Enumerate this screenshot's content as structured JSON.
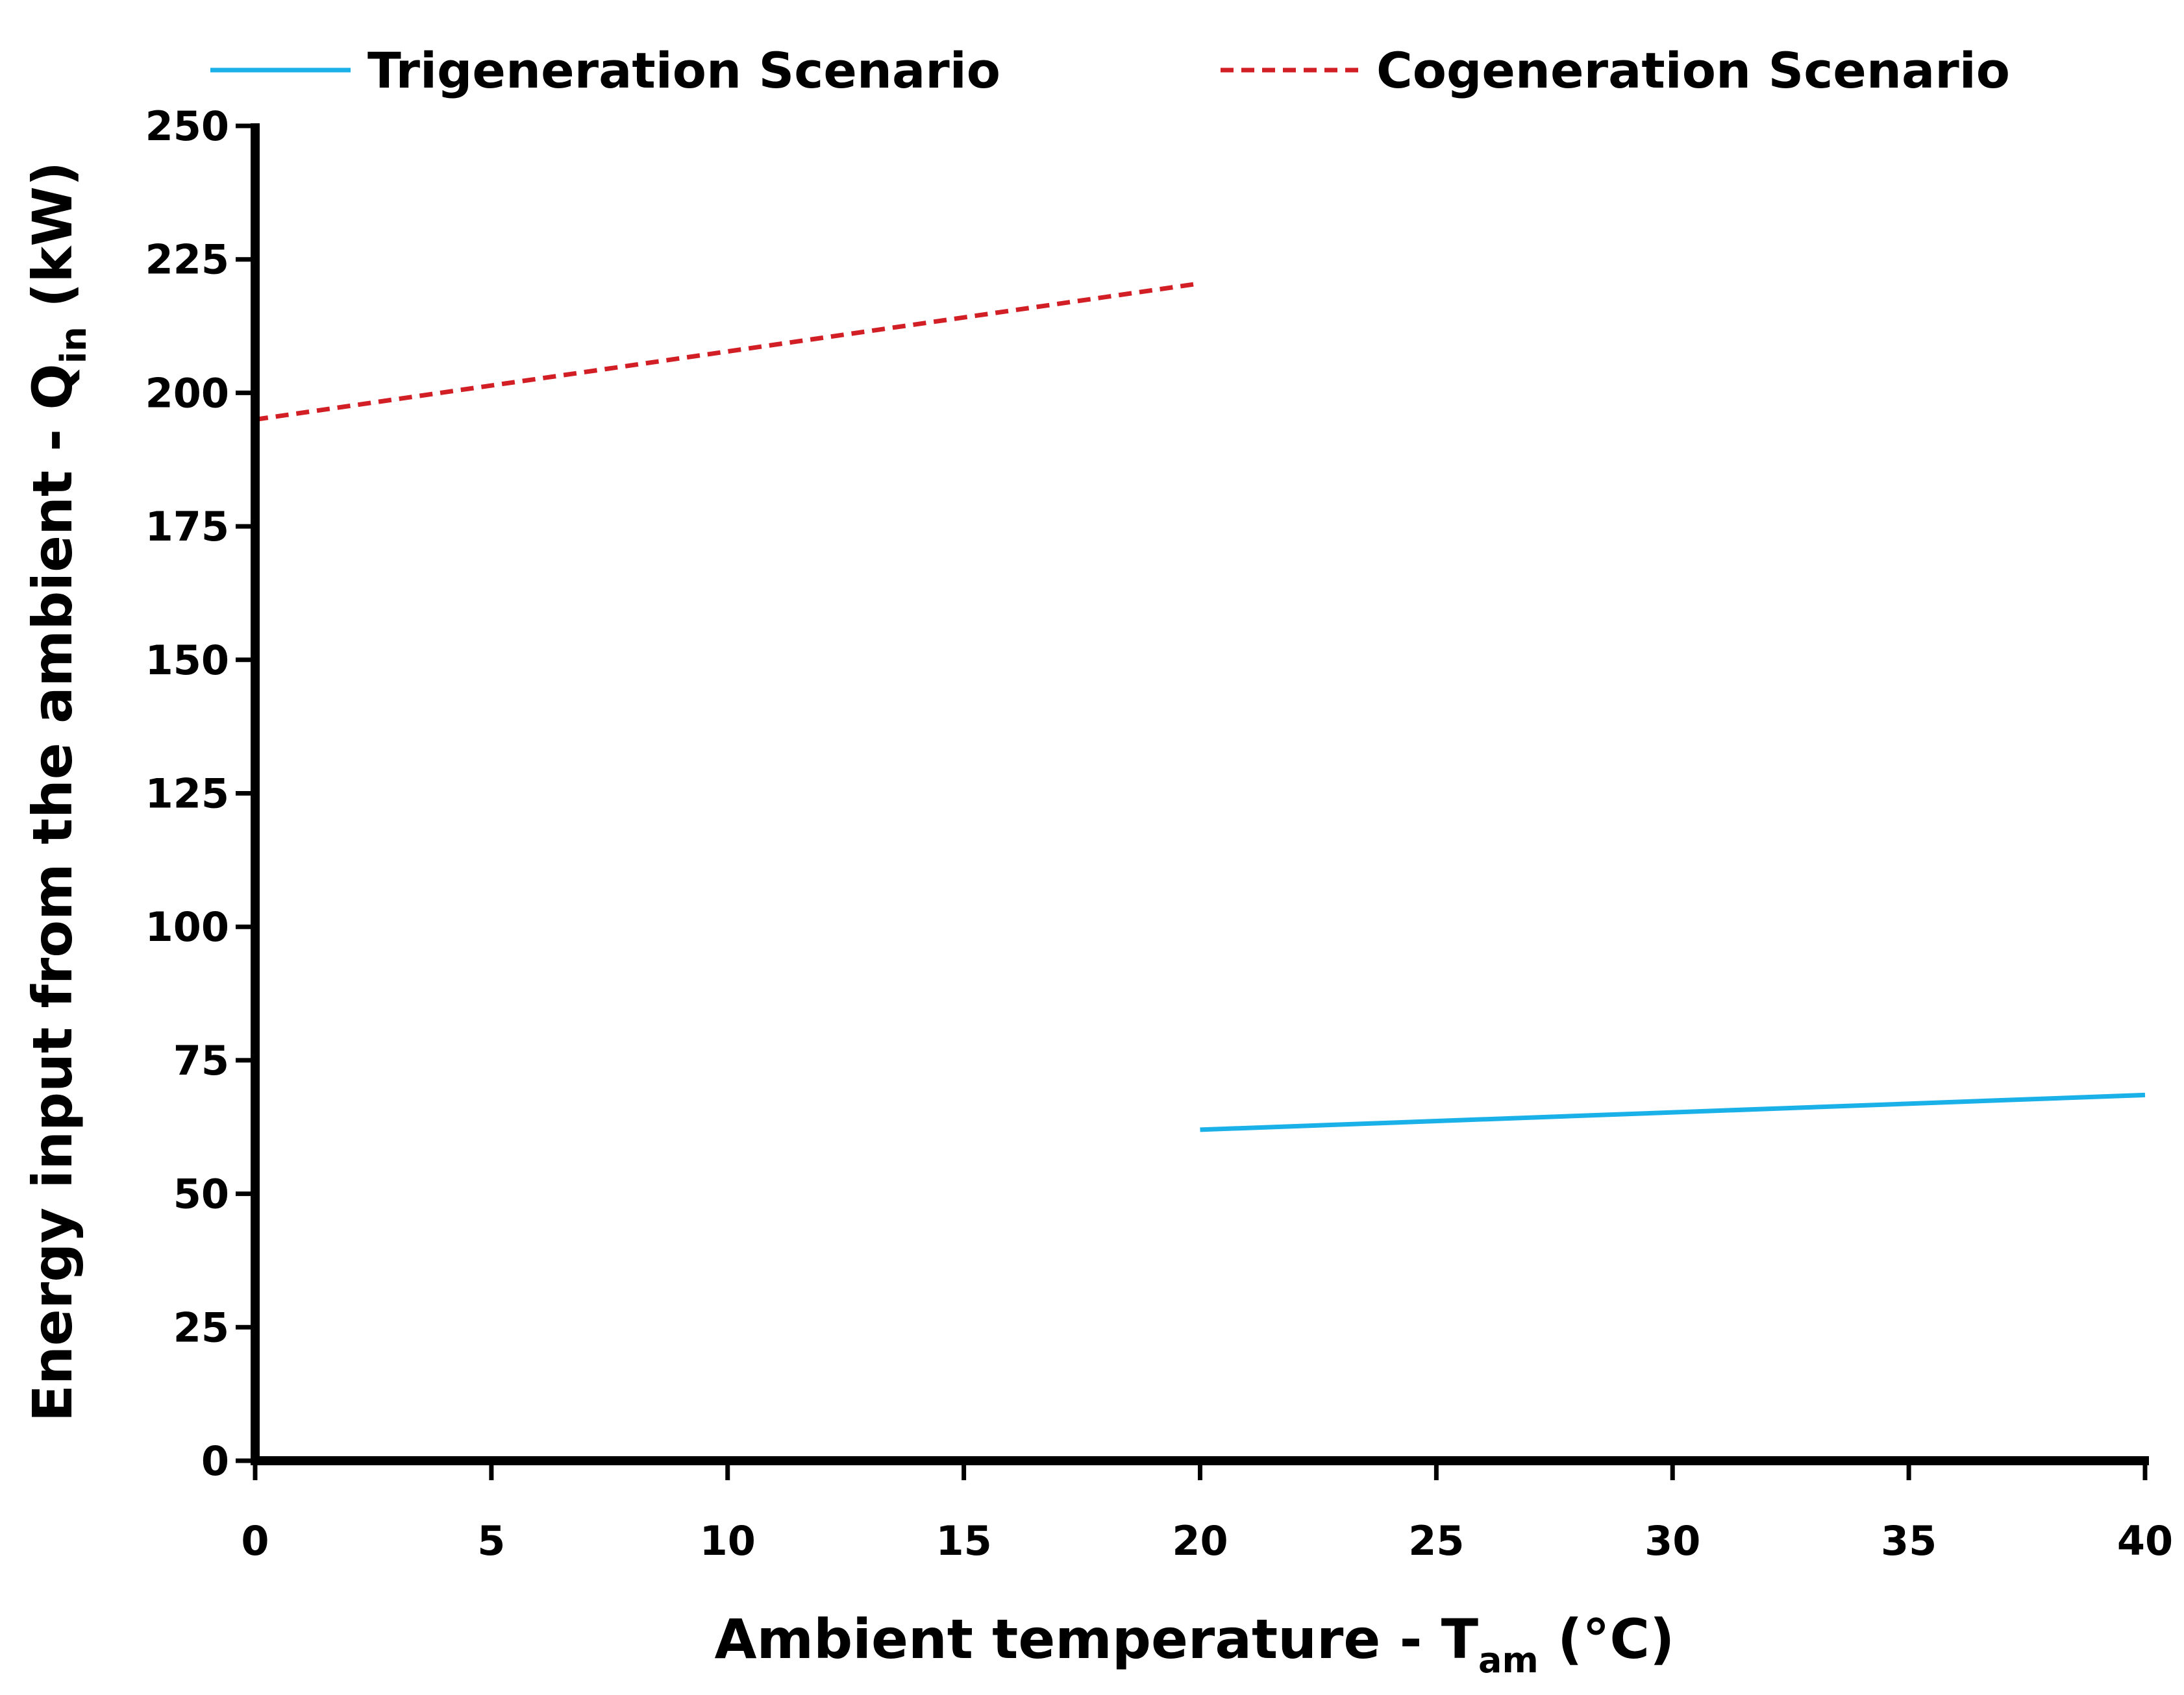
{
  "chart_data": {
    "type": "line",
    "title": "",
    "xlabel": "Ambient temperature - T",
    "xlabel_sub": "am",
    "xlabel_suffix": " (°C)",
    "ylabel": "Energy input  from the ambient - Q",
    "ylabel_sub": "in",
    "ylabel_suffix": " (kW)",
    "xlim": [
      0,
      40
    ],
    "ylim": [
      0,
      250
    ],
    "xticks": [
      0,
      5,
      10,
      15,
      20,
      25,
      30,
      35,
      40
    ],
    "yticks": [
      0,
      25,
      50,
      75,
      100,
      125,
      150,
      175,
      200,
      225,
      250
    ],
    "grid": false,
    "legend_position": "top",
    "series": [
      {
        "name": "Trigeneration Scenario",
        "color": "#1AB0E8",
        "style": "solid",
        "x": [
          20,
          40
        ],
        "y": [
          62,
          68.5
        ]
      },
      {
        "name": "Cogeneration Scenario",
        "color": "#D21F26",
        "style": "dashed",
        "x": [
          0,
          20
        ],
        "y": [
          195,
          220.5
        ]
      }
    ]
  }
}
